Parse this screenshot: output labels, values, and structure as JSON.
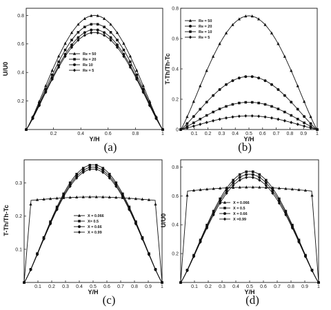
{
  "chart_data": [
    {
      "panel": "(a)",
      "type": "line",
      "xlabel": "Y/H",
      "ylabel": "U/U0",
      "xlim": [
        0,
        1
      ],
      "ylim": [
        0,
        0.85
      ],
      "xticks": [
        "0.2",
        "0.4",
        "0.6",
        "0.8",
        "1"
      ],
      "yticks": [
        "0.2",
        "0.4",
        "0.6",
        "0.8"
      ],
      "legend_position": "center-right",
      "series": [
        {
          "name": "Re = 50",
          "marker": "triangle",
          "peak": 0.8,
          "shape": "parabola"
        },
        {
          "name": "Re = 20",
          "marker": "square",
          "peak": 0.74,
          "shape": "parabola"
        },
        {
          "name": "Re 10",
          "marker": "circle",
          "peak": 0.7,
          "shape": "parabola"
        },
        {
          "name": "Re = 5",
          "marker": "diamond",
          "peak": 0.68,
          "shape": "parabola"
        }
      ]
    },
    {
      "panel": "(b)",
      "type": "line",
      "xlabel": "Y/H",
      "ylabel": "T-Th/Th-Tc",
      "xlim": [
        0,
        1
      ],
      "ylim": [
        0,
        0.8
      ],
      "xticks": [
        "0.1",
        "0.2",
        "0.3",
        "0.4",
        "0.5",
        "0.6",
        "0.7",
        "0.8",
        "0.9",
        "1"
      ],
      "yticks": [
        "0",
        "0.2",
        "0.4",
        "0.6",
        "0.8"
      ],
      "legend_position": "top-left",
      "series": [
        {
          "name": "Re = 50",
          "marker": "triangle",
          "peak": 0.75,
          "shape": "parabola"
        },
        {
          "name": "Re = 20",
          "marker": "circle",
          "peak": 0.35,
          "shape": "parabola"
        },
        {
          "name": "Re = 10",
          "marker": "square",
          "peak": 0.18,
          "shape": "parabola"
        },
        {
          "name": "Re = 5",
          "marker": "diamond",
          "peak": 0.09,
          "shape": "parabola"
        }
      ]
    },
    {
      "panel": "(c)",
      "type": "line",
      "xlabel": "Y/H",
      "ylabel": "T-Th/Th-Tc",
      "xlim": [
        0,
        1
      ],
      "ylim": [
        0,
        0.37
      ],
      "xticks": [
        "0.1",
        "0.2",
        "0.3",
        "0.4",
        "0.5",
        "0.6",
        "0.7",
        "0.8",
        "0.9",
        "1"
      ],
      "yticks": [
        "0.1",
        "0.2",
        "0.3"
      ],
      "legend_position": "center",
      "series": [
        {
          "name": "X = 0.066",
          "marker": "triangle",
          "peak": 0.258,
          "shape": "plateau"
        },
        {
          "name": "X= 0.5",
          "marker": "square",
          "peak": 0.355,
          "shape": "parabola"
        },
        {
          "name": "X = 0.66",
          "marker": "circle",
          "peak": 0.348,
          "shape": "parabola"
        },
        {
          "name": "X = 0.99",
          "marker": "diamond",
          "peak": 0.342,
          "shape": "parabola"
        }
      ]
    },
    {
      "panel": "(d)",
      "type": "line",
      "xlabel": "Y/H",
      "ylabel": "U/U0",
      "xlim": [
        0,
        1
      ],
      "ylim": [
        0,
        0.85
      ],
      "xticks": [
        "0.1",
        "0.2",
        "0.3",
        "0.4",
        "0.5",
        "0.6",
        "0.7",
        "0.8",
        "0.9",
        "1"
      ],
      "yticks": [
        "0.2",
        "0.4",
        "0.6",
        "0.8"
      ],
      "legend_position": "center",
      "series": [
        {
          "name": "X = 0.066",
          "marker": "triangle",
          "peak": 0.66,
          "shape": "plateau"
        },
        {
          "name": "X = 0.5",
          "marker": "square",
          "peak": 0.77,
          "shape": "parabola"
        },
        {
          "name": "X = 0.66",
          "marker": "circle",
          "peak": 0.75,
          "shape": "parabola"
        },
        {
          "name": "X =0.99",
          "marker": "diamond",
          "peak": 0.73,
          "shape": "parabola"
        }
      ]
    }
  ]
}
